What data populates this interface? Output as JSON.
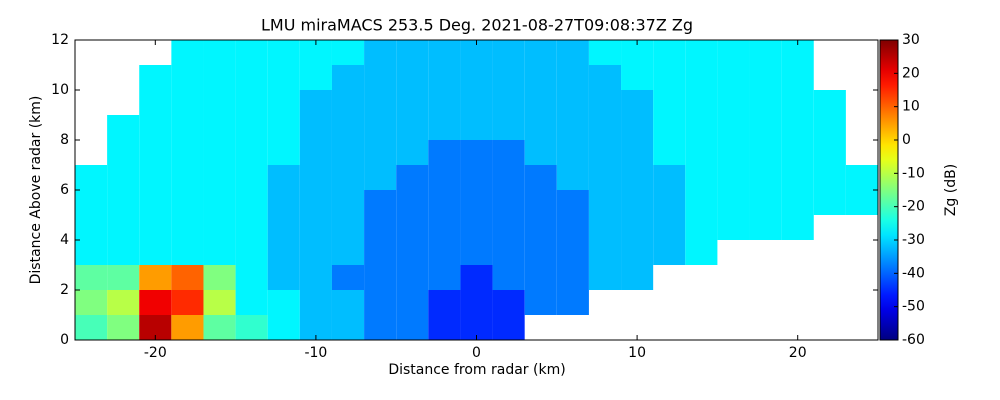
{
  "chart_data": {
    "type": "heatmap",
    "title": "LMU miraMACS 253.5 Deg. 2021-08-27T09:08:37Z  Zg",
    "x_label": "Distance from radar (km)",
    "y_label": "Distance Above radar  (km)",
    "colorbar_label": "Zg (dB)",
    "colormap": "jet",
    "x": [
      -24,
      -22,
      -20,
      -18,
      -16,
      -14,
      -12,
      -10,
      -8,
      -6,
      -4,
      -2,
      0,
      2,
      4,
      6,
      8,
      10,
      12,
      14,
      16,
      18,
      20,
      22,
      24
    ],
    "y": [
      0.5,
      1.5,
      2.5,
      3.5,
      4.5,
      5.5,
      6.5,
      7.5,
      8.5,
      9.5,
      10.5,
      11.5
    ],
    "z": [
      [
        -20,
        -15,
        25,
        5,
        -18,
        -22,
        -27,
        -32,
        -32,
        -38,
        -38,
        -45,
        -45,
        -45,
        null,
        null,
        null,
        null,
        null,
        null,
        null,
        null,
        null,
        null,
        null
      ],
      [
        -15,
        -10,
        20,
        15,
        -10,
        -27,
        -27,
        -32,
        -32,
        -38,
        -38,
        -45,
        -45,
        -45,
        -38,
        -38,
        null,
        null,
        null,
        null,
        null,
        null,
        null,
        null,
        null
      ],
      [
        -18,
        -18,
        5,
        10,
        -15,
        -27,
        -32,
        -32,
        -38,
        -38,
        -38,
        -38,
        -45,
        -38,
        -38,
        -38,
        -32,
        -32,
        null,
        null,
        null,
        null,
        null,
        null,
        null
      ],
      [
        -27,
        -27,
        -27,
        -27,
        -27,
        -27,
        -32,
        -32,
        -32,
        -38,
        -38,
        -38,
        -38,
        -38,
        -38,
        -38,
        -32,
        -32,
        -32,
        -27,
        null,
        null,
        null,
        null,
        null
      ],
      [
        -27,
        -27,
        -27,
        -27,
        -27,
        -27,
        -32,
        -32,
        -32,
        -38,
        -38,
        -38,
        -38,
        -38,
        -38,
        -38,
        -32,
        -32,
        -32,
        -27,
        -27,
        -27,
        -27,
        null,
        null
      ],
      [
        -27,
        -27,
        -27,
        -27,
        -27,
        -27,
        -32,
        -32,
        -32,
        -38,
        -38,
        -38,
        -38,
        -38,
        -38,
        -38,
        -32,
        -32,
        -32,
        -27,
        -27,
        -27,
        -27,
        -27,
        -27
      ],
      [
        -27,
        -27,
        -27,
        -27,
        -27,
        -27,
        -32,
        -32,
        -32,
        -32,
        -38,
        -38,
        -38,
        -38,
        -38,
        -32,
        -32,
        -32,
        -32,
        -27,
        -27,
        -27,
        -27,
        -27,
        -27
      ],
      [
        null,
        -27,
        -27,
        -27,
        -27,
        -27,
        -27,
        -32,
        -32,
        -32,
        -32,
        -38,
        -38,
        -38,
        -32,
        -32,
        -32,
        -32,
        -27,
        -27,
        -27,
        -27,
        -27,
        -27,
        null
      ],
      [
        null,
        -27,
        -27,
        -27,
        -27,
        -27,
        -27,
        -32,
        -32,
        -32,
        -32,
        -32,
        -32,
        -32,
        -32,
        -32,
        -32,
        -32,
        -27,
        -27,
        -27,
        -27,
        -27,
        -27,
        null
      ],
      [
        null,
        null,
        -27,
        -27,
        -27,
        -27,
        -27,
        -32,
        -32,
        -32,
        -32,
        -32,
        -32,
        -32,
        -32,
        -32,
        -32,
        -32,
        -27,
        -27,
        -27,
        -27,
        -27,
        -27,
        null
      ],
      [
        null,
        null,
        -27,
        -27,
        -27,
        -27,
        -27,
        -27,
        -32,
        -32,
        -32,
        -32,
        -32,
        -32,
        -32,
        -32,
        -32,
        -27,
        -27,
        -27,
        -27,
        -27,
        -27,
        null,
        null
      ],
      [
        null,
        null,
        null,
        -27,
        -27,
        -27,
        -27,
        -27,
        -27,
        -32,
        -32,
        -32,
        -32,
        -32,
        -32,
        -32,
        -27,
        -27,
        -27,
        -27,
        -27,
        -27,
        -27,
        null,
        null
      ]
    ],
    "xlim": [
      -25,
      25
    ],
    "ylim": [
      0,
      12
    ],
    "xticks": [
      -20,
      -10,
      0,
      10,
      20
    ],
    "yticks": [
      0,
      2,
      4,
      6,
      8,
      10,
      12
    ],
    "clim": [
      -60,
      30
    ],
    "cticks": [
      -60,
      -50,
      -40,
      -30,
      -20,
      -10,
      0,
      10,
      20,
      30
    ]
  }
}
